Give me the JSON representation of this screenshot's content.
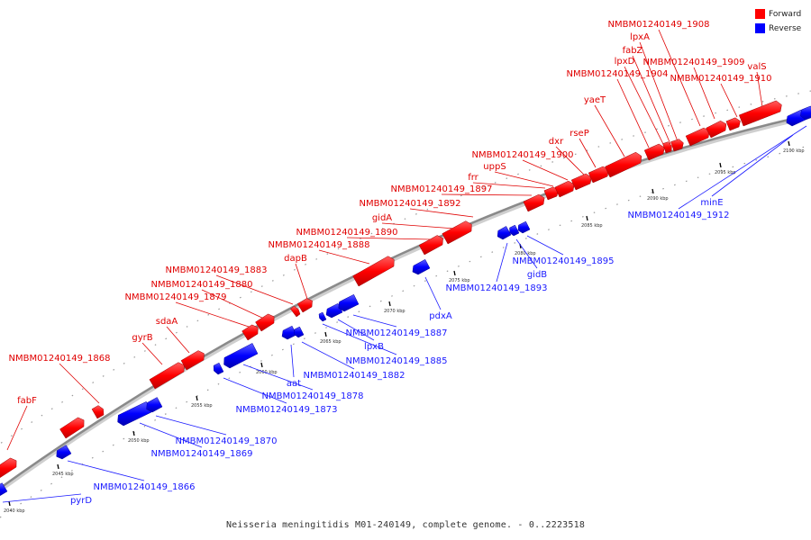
{
  "caption": "Neisseria meningitidis M01-240149, complete genome. - 0..2223518",
  "legend": {
    "forward": {
      "label": "Forward",
      "color": "#ff0000"
    },
    "reverse": {
      "label": "Reverse",
      "color": "#0000ff"
    }
  },
  "kbp_ticks": [
    {
      "label": "2040 kbp"
    },
    {
      "label": "2045 kbp"
    },
    {
      "label": "2050 kbp"
    },
    {
      "label": "2055 kbp"
    },
    {
      "label": "2060 kbp"
    },
    {
      "label": "2065 kbp"
    },
    {
      "label": "2070 kbp"
    },
    {
      "label": "2075 kbp"
    },
    {
      "label": "2080 kbp"
    },
    {
      "label": "2085 kbp"
    },
    {
      "label": "2090 kbp"
    },
    {
      "label": "2095 kbp"
    },
    {
      "label": "2100 kbp"
    }
  ],
  "forward_genes": [
    {
      "label": "fabF"
    },
    {
      "label": "NMBM01240149_1868"
    },
    {
      "label": "gyrB"
    },
    {
      "label": "sdaA"
    },
    {
      "label": "NMBM01240149_1879"
    },
    {
      "label": "NMBM01240149_1880"
    },
    {
      "label": "NMBM01240149_1883"
    },
    {
      "label": "dapB"
    },
    {
      "label": "NMBM01240149_1888"
    },
    {
      "label": "NMBM01240149_1890"
    },
    {
      "label": "gidA"
    },
    {
      "label": "NMBM01240149_1892"
    },
    {
      "label": "NMBM01240149_1897"
    },
    {
      "label": "frr"
    },
    {
      "label": "uppS"
    },
    {
      "label": "NMBM01240149_1900"
    },
    {
      "label": "dxr"
    },
    {
      "label": "rseP"
    },
    {
      "label": "yaeT"
    },
    {
      "label": "NMBM01240149_1904"
    },
    {
      "label": "lpxD"
    },
    {
      "label": "fabZ"
    },
    {
      "label": "lpxA"
    },
    {
      "label": "NMBM01240149_1908"
    },
    {
      "label": "NMBM01240149_1909"
    },
    {
      "label": "NMBM01240149_1910"
    },
    {
      "label": "valS"
    }
  ],
  "reverse_genes": [
    {
      "label": "pyrD"
    },
    {
      "label": "NMBM01240149_1866"
    },
    {
      "label": "NMBM01240149_1869"
    },
    {
      "label": "NMBM01240149_1870"
    },
    {
      "label": "NMBM01240149_1873"
    },
    {
      "label": "NMBM01240149_1878"
    },
    {
      "label": "aat"
    },
    {
      "label": "NMBM01240149_1882"
    },
    {
      "label": "NMBM01240149_1885"
    },
    {
      "label": "lpxB"
    },
    {
      "label": "NMBM01240149_1887"
    },
    {
      "label": "pdxA"
    },
    {
      "label": "NMBM01240149_1893"
    },
    {
      "label": "gidB"
    },
    {
      "label": "NMBM01240149_1895"
    },
    {
      "label": "minE"
    },
    {
      "label": "NMBM01240149_1912"
    }
  ]
}
